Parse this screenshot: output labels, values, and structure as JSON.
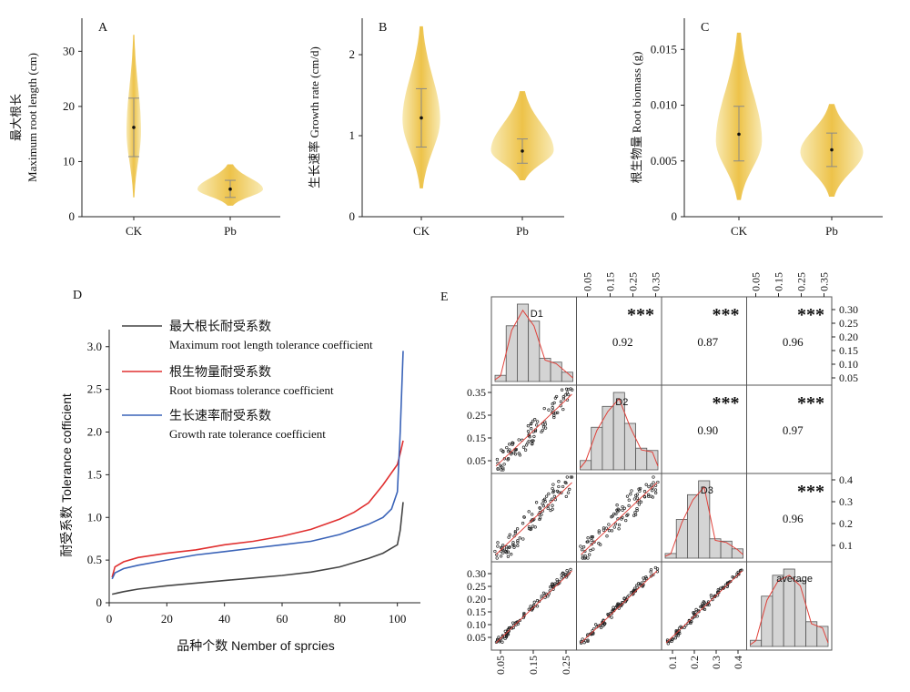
{
  "chart_data": [
    {
      "panel": "A",
      "type": "violin",
      "ylabel_cn": "最大根长",
      "ylabel_en": "Maximum root length (cm)",
      "categories": [
        "CK",
        "Pb"
      ],
      "ylim": [
        0,
        36
      ],
      "yticks": [
        0,
        10,
        20,
        30
      ],
      "ytick_labels": [
        "0",
        "10",
        "20",
        "30"
      ],
      "groups": [
        {
          "name": "CK",
          "mean": 16.2,
          "sd_low": 10.9,
          "sd_high": 21.5,
          "ymin": 3.5,
          "ymax": 33,
          "mode": 15.5,
          "width_scale": 0.2
        },
        {
          "name": "Pb",
          "mean": 5.0,
          "sd_low": 3.5,
          "sd_high": 6.6,
          "ymin": 2.0,
          "ymax": 9.5,
          "mode": 5.0,
          "width_scale": 0.9
        }
      ]
    },
    {
      "panel": "B",
      "type": "violin",
      "ylabel_cn": "生长速率",
      "ylabel_en": "Growth rate (cm/d)",
      "categories": [
        "CK",
        "Pb"
      ],
      "ylim": [
        0,
        2.45
      ],
      "yticks": [
        0,
        1,
        2
      ],
      "ytick_labels": [
        "0",
        "1",
        "2"
      ],
      "groups": [
        {
          "name": "CK",
          "mean": 1.22,
          "sd_low": 0.86,
          "sd_high": 1.58,
          "ymin": 0.35,
          "ymax": 2.35,
          "mode": 1.2,
          "width_scale": 0.45
        },
        {
          "name": "Pb",
          "mean": 0.81,
          "sd_low": 0.66,
          "sd_high": 0.96,
          "ymin": 0.45,
          "ymax": 1.55,
          "mode": 0.82,
          "width_scale": 0.75
        }
      ]
    },
    {
      "panel": "C",
      "type": "violin",
      "ylabel_cn": "根生物量",
      "ylabel_en": "Root biomass (g)",
      "categories": [
        "CK",
        "Pb"
      ],
      "ylim": [
        0,
        0.0178
      ],
      "yticks": [
        0,
        0.005,
        0.01,
        0.015
      ],
      "ytick_labels": [
        "0",
        "0.005",
        "0.010",
        "0.015"
      ],
      "groups": [
        {
          "name": "CK",
          "mean": 0.0074,
          "sd_low": 0.005,
          "sd_high": 0.0099,
          "ymin": 0.0015,
          "ymax": 0.0165,
          "mode": 0.0068,
          "width_scale": 0.55
        },
        {
          "name": "Pb",
          "mean": 0.006,
          "sd_low": 0.0045,
          "sd_high": 0.0075,
          "ymin": 0.0018,
          "ymax": 0.0101,
          "mode": 0.0058,
          "width_scale": 0.75
        }
      ]
    },
    {
      "panel": "D",
      "type": "line",
      "ylabel": "耐受系数 Tolerance cofficient",
      "xlabel": "品种个数 Nember of sprcies",
      "xlim": [
        0,
        108
      ],
      "ylim": [
        0,
        3.2
      ],
      "xticks": [
        0,
        20,
        40,
        60,
        80,
        100
      ],
      "yticks": [
        0,
        0.5,
        1.0,
        1.5,
        2.0,
        2.5,
        3.0
      ],
      "ytick_labels": [
        "0",
        "0.5",
        "1.0",
        "1.5",
        "2.0",
        "2.5",
        "3.0"
      ],
      "legend": [
        {
          "cn": "最大根长耐受系数",
          "en": "Maximum root length tolerance coefficient",
          "color": "#444444"
        },
        {
          "cn": "根生物量耐受系数",
          "en": "Root biomass tolerance coefficient",
          "color": "#e03030"
        },
        {
          "cn": "生长速率耐受系数",
          "en": "Growth rate tolerance coefficient",
          "color": "#3a63b8"
        }
      ],
      "series": [
        {
          "name": "最大根长耐受系数",
          "color": "#444444",
          "x": [
            1,
            5,
            10,
            20,
            30,
            40,
            50,
            60,
            70,
            80,
            85,
            90,
            95,
            100,
            101,
            102
          ],
          "y": [
            0.1,
            0.13,
            0.16,
            0.2,
            0.23,
            0.26,
            0.29,
            0.32,
            0.36,
            0.42,
            0.47,
            0.52,
            0.58,
            0.68,
            0.85,
            1.18
          ]
        },
        {
          "name": "根生物量耐受系数",
          "color": "#e03030",
          "x": [
            1,
            2,
            5,
            10,
            20,
            30,
            40,
            50,
            60,
            70,
            80,
            85,
            90,
            95,
            100,
            101,
            102
          ],
          "y": [
            0.3,
            0.42,
            0.48,
            0.53,
            0.58,
            0.62,
            0.68,
            0.72,
            0.78,
            0.86,
            0.98,
            1.06,
            1.17,
            1.38,
            1.62,
            1.75,
            1.9
          ]
        },
        {
          "name": "生长速率耐受系数",
          "color": "#3a63b8",
          "x": [
            1,
            2,
            5,
            10,
            20,
            30,
            40,
            50,
            60,
            70,
            80,
            90,
            95,
            98,
            100,
            101,
            102
          ],
          "y": [
            0.28,
            0.35,
            0.4,
            0.44,
            0.5,
            0.56,
            0.6,
            0.64,
            0.68,
            0.72,
            0.8,
            0.92,
            1.0,
            1.1,
            1.3,
            2.0,
            2.95
          ]
        }
      ]
    },
    {
      "panel": "E",
      "type": "scatter-matrix",
      "variables": [
        "D1",
        "D2",
        "D3",
        "average"
      ],
      "significance": "***",
      "correlations": [
        [
          null,
          0.92,
          0.87,
          0.96
        ],
        [
          null,
          null,
          0.9,
          0.97
        ],
        [
          null,
          null,
          null,
          0.96
        ]
      ],
      "correlation_labels": [
        "0.92",
        "0.87",
        "0.96",
        "0.90",
        "0.97",
        "0.96"
      ],
      "top_axis": {
        "col1": [
          "0.05",
          "0.15",
          "0.25",
          "0.35"
        ],
        "col3": [
          "0.05",
          "0.15",
          "0.25",
          "0.35"
        ]
      },
      "right_axis": {
        "row0": [
          "0.05",
          "0.10",
          "0.15",
          "0.20",
          "0.25",
          "0.30"
        ],
        "row2": [
          "0.1",
          "0.2",
          "0.3",
          "0.4"
        ]
      },
      "left_axis": {
        "row1": [
          "0.05",
          "0.15",
          "0.25",
          "0.35"
        ],
        "row3": [
          "0.05",
          "0.10",
          "0.15",
          "0.20",
          "0.25",
          "0.30"
        ]
      },
      "bottom_axis": {
        "col0": [
          "0.05",
          "0.15",
          "0.25"
        ],
        "col2": [
          "0.1",
          "0.2",
          "0.3",
          "0.4"
        ]
      },
      "histograms": {
        "D1": [
          0.08,
          0.72,
          1.0,
          0.78,
          0.3,
          0.25,
          0.12
        ],
        "D2": [
          0.12,
          0.55,
          0.82,
          1.0,
          0.6,
          0.28,
          0.25
        ],
        "D3": [
          0.06,
          0.5,
          0.82,
          1.0,
          0.25,
          0.22,
          0.12
        ],
        "average": [
          0.08,
          0.65,
          0.92,
          1.0,
          0.85,
          0.32,
          0.26
        ]
      }
    }
  ],
  "panel_labels": {
    "A": "A",
    "B": "B",
    "C": "C",
    "D": "D",
    "E": "E"
  },
  "colors": {
    "violin": "#e8b420",
    "violin_light": "#f6dd86",
    "red_star": "#d9475e",
    "hist_fill": "#d4d4d4",
    "density": "#e0413a"
  }
}
